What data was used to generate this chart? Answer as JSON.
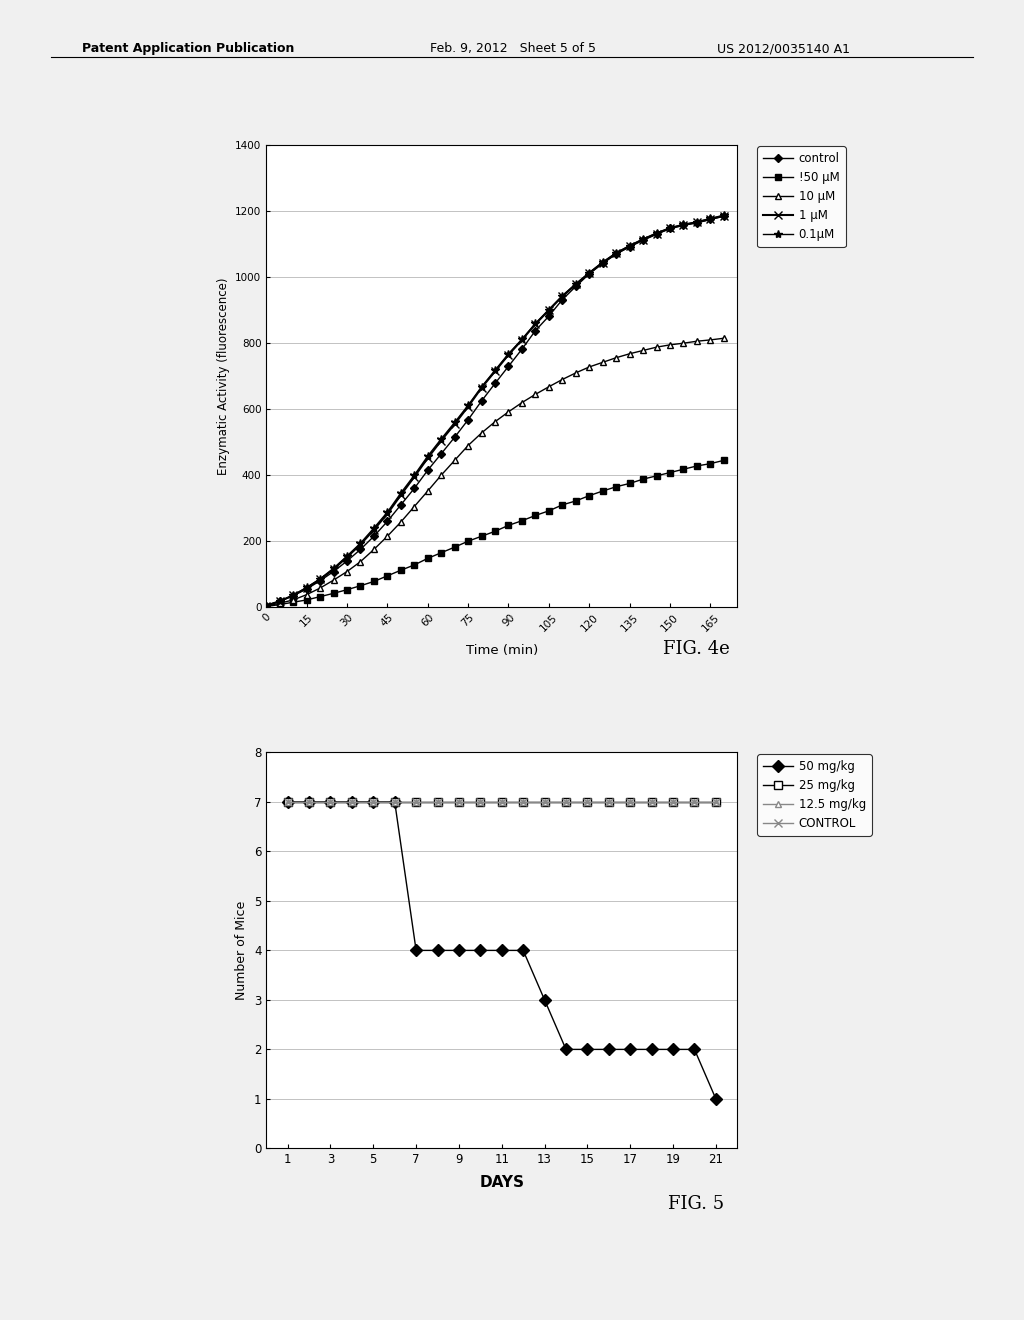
{
  "page_background": "#f0f0f0",
  "header_left": "Patent Application Publication",
  "header_mid": "Feb. 9, 2012   Sheet 5 of 5",
  "header_right": "US 2012/0035140 A1",
  "fig4e": {
    "title": "FIG. 4e",
    "xlabel": "Time (min)",
    "ylabel": "Enzymatic Activity (fluorescence)",
    "xlim": [
      0,
      175
    ],
    "ylim": [
      0,
      1400
    ],
    "xticks": [
      0,
      15,
      30,
      45,
      60,
      75,
      90,
      105,
      120,
      135,
      150,
      165
    ],
    "yticks": [
      0,
      200,
      400,
      600,
      800,
      1000,
      1200,
      1400
    ],
    "series": {
      "control": {
        "label": "control",
        "marker": "D",
        "color": "#000000",
        "linestyle": "-",
        "linewidth": 1,
        "markersize": 4,
        "x": [
          0,
          5,
          10,
          15,
          20,
          25,
          30,
          35,
          40,
          45,
          50,
          55,
          60,
          65,
          70,
          75,
          80,
          85,
          90,
          95,
          100,
          105,
          110,
          115,
          120,
          125,
          130,
          135,
          140,
          145,
          150,
          155,
          160,
          165,
          170
        ],
        "y": [
          5,
          18,
          35,
          55,
          80,
          108,
          140,
          175,
          215,
          260,
          310,
          360,
          415,
          465,
          515,
          568,
          625,
          678,
          730,
          782,
          838,
          882,
          932,
          972,
          1010,
          1042,
          1070,
          1092,
          1112,
          1130,
          1148,
          1158,
          1165,
          1175,
          1185
        ]
      },
      "50uM": {
        "label": "!50 μM",
        "marker": "s",
        "color": "#000000",
        "linestyle": "-",
        "linewidth": 1,
        "markersize": 4,
        "x": [
          0,
          5,
          10,
          15,
          20,
          25,
          30,
          35,
          40,
          45,
          50,
          55,
          60,
          65,
          70,
          75,
          80,
          85,
          90,
          95,
          100,
          105,
          110,
          115,
          120,
          125,
          130,
          135,
          140,
          145,
          150,
          155,
          160,
          165,
          170
        ],
        "y": [
          2,
          8,
          15,
          22,
          32,
          42,
          53,
          65,
          78,
          95,
          112,
          128,
          148,
          165,
          182,
          200,
          215,
          230,
          248,
          262,
          278,
          292,
          310,
          322,
          338,
          352,
          365,
          375,
          388,
          398,
          408,
          418,
          428,
          435,
          445
        ]
      },
      "10uM": {
        "label": "10 μM",
        "marker": "^",
        "color": "#000000",
        "linestyle": "-",
        "linewidth": 1,
        "markersize": 4,
        "markerfacecolor": "white",
        "x": [
          0,
          5,
          10,
          15,
          20,
          25,
          30,
          35,
          40,
          45,
          50,
          55,
          60,
          65,
          70,
          75,
          80,
          85,
          90,
          95,
          100,
          105,
          110,
          115,
          120,
          125,
          130,
          135,
          140,
          145,
          150,
          155,
          160,
          165,
          170
        ],
        "y": [
          3,
          12,
          22,
          38,
          58,
          82,
          108,
          138,
          175,
          215,
          258,
          305,
          352,
          400,
          445,
          490,
          528,
          562,
          592,
          620,
          645,
          668,
          690,
          710,
          728,
          742,
          756,
          768,
          778,
          788,
          795,
          800,
          806,
          810,
          815
        ]
      },
      "1uM": {
        "label": "1 μM",
        "marker": "x",
        "color": "#000000",
        "linestyle": "-",
        "linewidth": 1.5,
        "markersize": 6,
        "x": [
          0,
          5,
          10,
          15,
          20,
          25,
          30,
          35,
          40,
          45,
          50,
          55,
          60,
          65,
          70,
          75,
          80,
          85,
          90,
          95,
          100,
          105,
          110,
          115,
          120,
          125,
          130,
          135,
          140,
          145,
          150,
          155,
          160,
          165,
          170
        ],
        "y": [
          5,
          18,
          36,
          58,
          84,
          115,
          152,
          190,
          235,
          283,
          340,
          395,
          452,
          505,
          555,
          608,
          665,
          715,
          765,
          810,
          858,
          900,
          942,
          978,
          1012,
          1044,
          1072,
          1094,
          1114,
          1132,
          1148,
          1158,
          1166,
          1176,
          1186
        ]
      },
      "01uM": {
        "label": "0.1μM",
        "marker": "*",
        "color": "#000000",
        "linestyle": "-",
        "linewidth": 1,
        "markersize": 6,
        "x": [
          0,
          5,
          10,
          15,
          20,
          25,
          30,
          35,
          40,
          45,
          50,
          55,
          60,
          65,
          70,
          75,
          80,
          85,
          90,
          95,
          100,
          105,
          110,
          115,
          120,
          125,
          130,
          135,
          140,
          145,
          150,
          155,
          160,
          165,
          170
        ],
        "y": [
          5,
          18,
          36,
          60,
          86,
          118,
          155,
          194,
          240,
          288,
          346,
          400,
          458,
          510,
          560,
          612,
          668,
          718,
          768,
          812,
          860,
          902,
          944,
          980,
          1014,
          1046,
          1074,
          1096,
          1116,
          1134,
          1150,
          1160,
          1168,
          1178,
          1188
        ]
      }
    }
  },
  "fig5": {
    "title": "FIG. 5",
    "xlabel": "DAYS",
    "ylabel": "Number of Mice",
    "xlim": [
      0,
      22
    ],
    "ylim": [
      0,
      8
    ],
    "xticks": [
      1,
      3,
      5,
      7,
      9,
      11,
      13,
      15,
      17,
      19,
      21
    ],
    "yticks": [
      0,
      1,
      2,
      3,
      4,
      5,
      6,
      7,
      8
    ],
    "series": {
      "50mgkg": {
        "label": "50 mg/kg",
        "marker": "D",
        "color": "#000000",
        "linestyle": "-",
        "linewidth": 1,
        "markersize": 6,
        "markerfacecolor": "#000000",
        "x": [
          1,
          2,
          3,
          4,
          5,
          6,
          7,
          8,
          9,
          10,
          11,
          12,
          13,
          14,
          15,
          16,
          17,
          18,
          19,
          20,
          21
        ],
        "y": [
          7,
          7,
          7,
          7,
          7,
          7,
          4,
          4,
          4,
          4,
          4,
          4,
          3,
          2,
          2,
          2,
          2,
          2,
          2,
          2,
          1
        ]
      },
      "25mgkg": {
        "label": "25 mg/kg",
        "marker": "s",
        "color": "#000000",
        "linestyle": "-",
        "linewidth": 1,
        "markersize": 6,
        "markerfacecolor": "white",
        "x": [
          1,
          2,
          3,
          4,
          5,
          6,
          7,
          8,
          9,
          10,
          11,
          12,
          13,
          14,
          15,
          16,
          17,
          18,
          19,
          20,
          21
        ],
        "y": [
          7,
          7,
          7,
          7,
          7,
          7,
          7,
          7,
          7,
          7,
          7,
          7,
          7,
          7,
          7,
          7,
          7,
          7,
          7,
          7,
          7
        ]
      },
      "125mgkg": {
        "label": "12.5 mg/kg",
        "marker": "^",
        "color": "#888888",
        "linestyle": "-",
        "linewidth": 1,
        "markersize": 5,
        "markerfacecolor": "white",
        "x": [
          1,
          2,
          3,
          4,
          5,
          6,
          7,
          8,
          9,
          10,
          11,
          12,
          13,
          14,
          15,
          16,
          17,
          18,
          19,
          20,
          21
        ],
        "y": [
          7,
          7,
          7,
          7,
          7,
          7,
          7,
          7,
          7,
          7,
          7,
          7,
          7,
          7,
          7,
          7,
          7,
          7,
          7,
          7,
          7
        ]
      },
      "control": {
        "label": "CONTROL",
        "marker": "x",
        "color": "#888888",
        "linestyle": "-",
        "linewidth": 1,
        "markersize": 6,
        "x": [
          1,
          2,
          3,
          4,
          5,
          6,
          7,
          8,
          9,
          10,
          11,
          12,
          13,
          14,
          15,
          16,
          17,
          18,
          19,
          20,
          21
        ],
        "y": [
          7,
          7,
          7,
          7,
          7,
          7,
          7,
          7,
          7,
          7,
          7,
          7,
          7,
          7,
          7,
          7,
          7,
          7,
          7,
          7,
          7
        ]
      }
    }
  }
}
